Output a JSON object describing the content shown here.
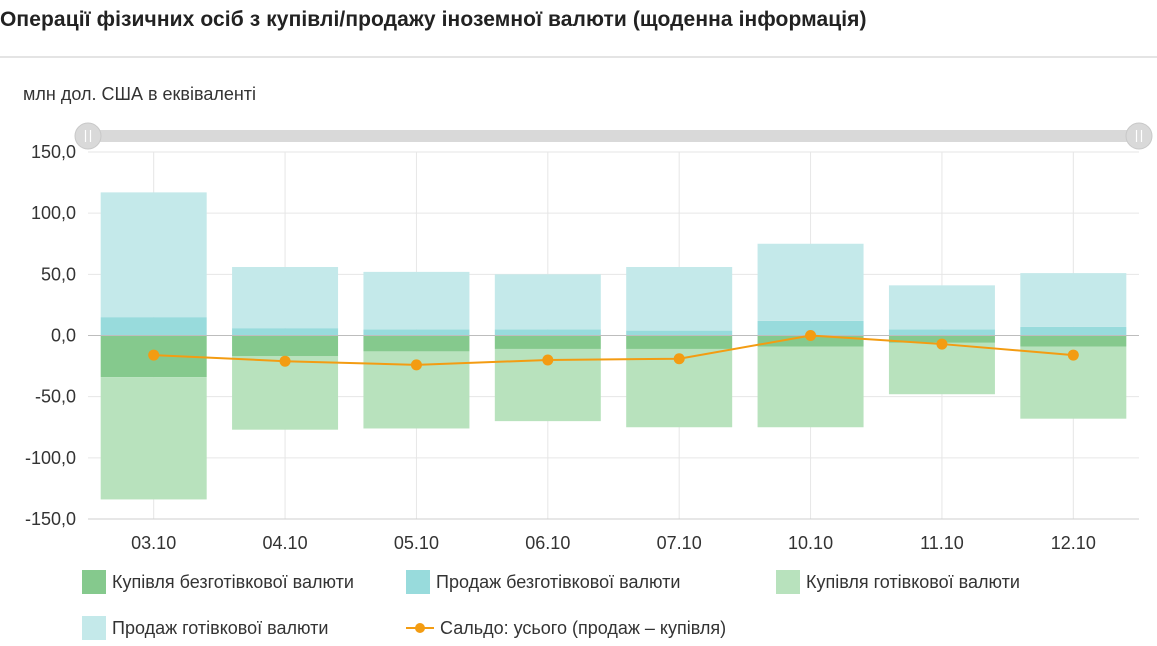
{
  "title": "Операції фізичних осіб з купівлі/продажу іноземної валюти (щоденна інформація)",
  "chart_data": {
    "type": "bar",
    "stacked": true,
    "ylabel": "млн дол. США в еквіваленті",
    "ylim": [
      -150,
      150
    ],
    "yticks": [
      "150,0",
      "100,0",
      "50,0",
      "0,0",
      "-50,0",
      "-100,0",
      "-150,0"
    ],
    "ytick_values": [
      150,
      100,
      50,
      0,
      -50,
      -100,
      -150
    ],
    "categories": [
      "03.10",
      "04.10",
      "05.10",
      "06.10",
      "07.10",
      "10.10",
      "11.10",
      "12.10"
    ],
    "grid": true,
    "legend_position": "bottom",
    "series": [
      {
        "name": "Купівля безготівкової валюти",
        "color": "#85c98d",
        "kind": "bar",
        "values": [
          -34,
          -17,
          -13,
          -11,
          -11,
          -9,
          -6,
          -9
        ]
      },
      {
        "name": "Продаж безготівкової валюти",
        "color": "#98dbdc",
        "kind": "bar",
        "values": [
          15,
          6,
          5,
          5,
          4,
          12,
          5,
          7
        ]
      },
      {
        "name": "Купівля готівкової валюти",
        "color": "#b8e2bd",
        "kind": "bar",
        "values": [
          -100,
          -60,
          -63,
          -59,
          -64,
          -66,
          -42,
          -59
        ]
      },
      {
        "name": "Продаж готівкової валюти",
        "color": "#c4e9ea",
        "kind": "bar",
        "values": [
          102,
          50,
          47,
          45,
          52,
          63,
          36,
          44
        ]
      },
      {
        "name": "Сальдо: усього (продаж – купівля)",
        "color": "#f39c12",
        "kind": "line",
        "values": [
          -16,
          -21,
          -24,
          -20,
          -19,
          0,
          -7,
          -16
        ]
      }
    ]
  }
}
